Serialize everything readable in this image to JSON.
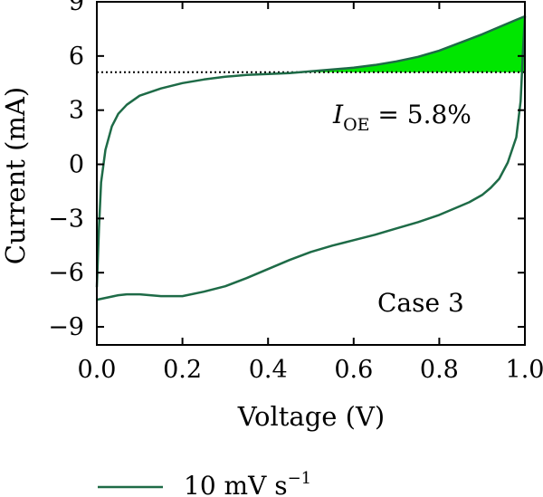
{
  "chart_data": {
    "type": "line",
    "xlabel": "Voltage (V)",
    "ylabel": "Current (mA)",
    "xlim": [
      0.0,
      1.0
    ],
    "ylim": [
      -10,
      9
    ],
    "x_ticks": [
      "0.0",
      "0.2",
      "0.4",
      "0.6",
      "0.8",
      "1.0"
    ],
    "y_ticks": [
      "9",
      "6",
      "3",
      "0",
      "−3",
      "−6",
      "−9"
    ],
    "x_tick_values": [
      0.0,
      0.2,
      0.4,
      0.6,
      0.8,
      1.0
    ],
    "y_tick_values": [
      9,
      6,
      3,
      0,
      -3,
      -6,
      -9
    ],
    "threshold_current": 5.1,
    "annotations": {
      "ioe_symbol": "I",
      "ioe_subscript": "OE",
      "ioe_value": " = 5.8%",
      "case": "Case 3"
    },
    "legend": {
      "placement": "bottom",
      "series_label": "10 mV s",
      "series_label_sup": "−1"
    },
    "colors": {
      "curve": "#1e6b47",
      "fill": "#00e600",
      "axis": "#000000"
    },
    "series": [
      {
        "name": "10 mV s⁻¹",
        "forward": {
          "x": [
            0.0,
            0.005,
            0.01,
            0.02,
            0.035,
            0.05,
            0.07,
            0.1,
            0.15,
            0.2,
            0.25,
            0.3,
            0.35,
            0.4,
            0.45,
            0.5,
            0.55,
            0.6,
            0.65,
            0.7,
            0.75,
            0.8,
            0.85,
            0.9,
            0.95,
            0.98,
            1.0
          ],
          "y": [
            -6.8,
            -3.5,
            -1.0,
            0.8,
            2.1,
            2.8,
            3.3,
            3.8,
            4.2,
            4.5,
            4.7,
            4.85,
            4.95,
            5.0,
            5.05,
            5.15,
            5.25,
            5.35,
            5.5,
            5.7,
            5.95,
            6.3,
            6.75,
            7.2,
            7.7,
            8.0,
            8.2
          ]
        },
        "reverse": {
          "x": [
            1.0,
            0.995,
            0.99,
            0.98,
            0.96,
            0.94,
            0.92,
            0.9,
            0.87,
            0.85,
            0.8,
            0.75,
            0.7,
            0.65,
            0.6,
            0.55,
            0.5,
            0.45,
            0.4,
            0.35,
            0.3,
            0.25,
            0.2,
            0.15,
            0.1,
            0.07,
            0.05,
            0.03,
            0.01,
            0.0
          ],
          "y": [
            8.2,
            6.0,
            3.5,
            1.5,
            0.1,
            -0.8,
            -1.3,
            -1.7,
            -2.1,
            -2.3,
            -2.8,
            -3.2,
            -3.55,
            -3.9,
            -4.2,
            -4.5,
            -4.85,
            -5.3,
            -5.8,
            -6.3,
            -6.75,
            -7.05,
            -7.3,
            -7.3,
            -7.2,
            -7.2,
            -7.25,
            -7.35,
            -7.45,
            -7.5
          ]
        }
      }
    ]
  }
}
